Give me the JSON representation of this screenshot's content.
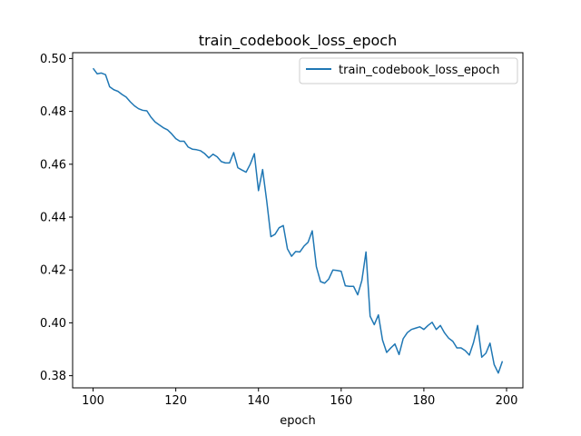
{
  "chart_data": {
    "type": "line",
    "title": "train_codebook_loss_epoch",
    "xlabel": "epoch",
    "ylabel": "",
    "xlim": [
      95.05,
      203.95
    ],
    "ylim": [
      0.3754,
      0.5022
    ],
    "xticks": [
      100,
      120,
      140,
      160,
      180,
      200
    ],
    "yticks": [
      0.38,
      0.4,
      0.42,
      0.44,
      0.46,
      0.48,
      0.5
    ],
    "ytick_labels": [
      "0.38",
      "0.40",
      "0.42",
      "0.44",
      "0.46",
      "0.48",
      "0.50"
    ],
    "grid": false,
    "legend": {
      "position": "upper right",
      "entries": [
        "train_codebook_loss_epoch"
      ]
    },
    "series": [
      {
        "name": "train_codebook_loss_epoch",
        "color": "#1f77b4",
        "x": [
          100,
          101,
          102,
          103,
          104,
          105,
          106,
          107,
          108,
          109,
          110,
          111,
          112,
          113,
          114,
          115,
          116,
          117,
          118,
          119,
          120,
          121,
          122,
          123,
          124,
          125,
          126,
          127,
          128,
          129,
          130,
          131,
          132,
          133,
          134,
          135,
          136,
          137,
          138,
          139,
          140,
          141,
          142,
          143,
          144,
          145,
          146,
          147,
          148,
          149,
          150,
          151,
          152,
          153,
          154,
          155,
          156,
          157,
          158,
          159,
          160,
          161,
          162,
          163,
          164,
          165,
          166,
          167,
          168,
          169,
          170,
          171,
          172,
          173,
          174,
          175,
          176,
          177,
          178,
          179,
          180,
          181,
          182,
          183,
          184,
          185,
          186,
          187,
          188,
          189,
          190,
          191,
          192,
          193,
          194,
          195,
          196,
          197,
          198,
          199
        ],
        "y": [
          0.4963,
          0.4942,
          0.4945,
          0.4939,
          0.4893,
          0.4882,
          0.4876,
          0.4864,
          0.4854,
          0.4836,
          0.4821,
          0.481,
          0.4804,
          0.4802,
          0.4778,
          0.476,
          0.4749,
          0.4738,
          0.473,
          0.4715,
          0.4697,
          0.4687,
          0.4687,
          0.4665,
          0.4657,
          0.4655,
          0.4651,
          0.464,
          0.4624,
          0.4638,
          0.4628,
          0.461,
          0.4605,
          0.4605,
          0.4644,
          0.4587,
          0.4578,
          0.457,
          0.46,
          0.464,
          0.45,
          0.458,
          0.446,
          0.4326,
          0.4335,
          0.436,
          0.4368,
          0.428,
          0.4252,
          0.427,
          0.4268,
          0.429,
          0.4305,
          0.4348,
          0.4212,
          0.4156,
          0.415,
          0.4166,
          0.42,
          0.4198,
          0.4195,
          0.414,
          0.4138,
          0.4138,
          0.4106,
          0.416,
          0.4268,
          0.4025,
          0.3993,
          0.403,
          0.3935,
          0.3888,
          0.3905,
          0.392,
          0.388,
          0.394,
          0.3963,
          0.3975,
          0.398,
          0.3985,
          0.3975,
          0.399,
          0.4002,
          0.3975,
          0.399,
          0.3962,
          0.3942,
          0.393,
          0.3905,
          0.3905,
          0.3895,
          0.3878,
          0.3925,
          0.399,
          0.387,
          0.3885,
          0.3923,
          0.3842,
          0.381,
          0.3855
        ]
      }
    ]
  }
}
